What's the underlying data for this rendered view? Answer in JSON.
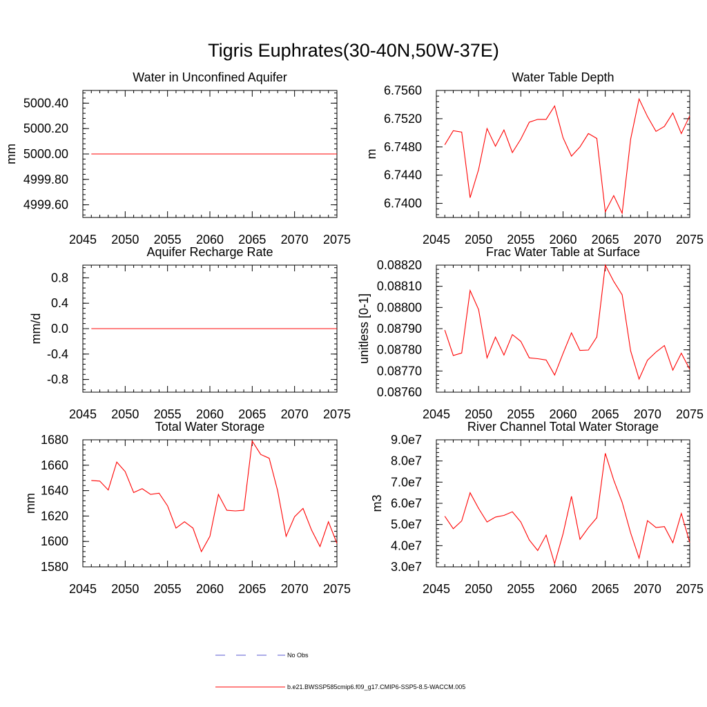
{
  "figure": {
    "title": "Tigris Euphrates(30-40N,50W-37E)"
  },
  "legend": {
    "items": [
      {
        "label": "No Obs",
        "color": "#5a5ad0",
        "style": "dashed"
      },
      {
        "label": "b.e21.BWSSP585cmip6.f09_g17.CMIP6-SSP5-8.5-WACCM.005",
        "color": "#ff0000",
        "style": "solid"
      }
    ]
  },
  "chart_data": [
    {
      "type": "line",
      "title": "Water in Unconfined Aquifer",
      "ylabel": "mm",
      "xlim": [
        2045,
        2075
      ],
      "ylim": [
        4999.5,
        5000.5
      ],
      "x_ticks": [
        "2045",
        "2050",
        "2055",
        "2060",
        "2065",
        "2070",
        "2075"
      ],
      "y_ticks": [
        {
          "value": 4999.6,
          "label": "4999.60"
        },
        {
          "value": 4999.8,
          "label": "4999.80"
        },
        {
          "value": 5000.0,
          "label": "5000.00"
        },
        {
          "value": 5000.2,
          "label": "5000.20"
        },
        {
          "value": 5000.4,
          "label": "5000.40"
        }
      ],
      "series": [
        {
          "color": "#ff0000",
          "x": [
            2046,
            2075
          ],
          "y": [
            5000.0,
            5000.0
          ]
        }
      ]
    },
    {
      "type": "line",
      "title": "Water Table Depth",
      "ylabel": "m",
      "xlim": [
        2045,
        2075
      ],
      "ylim": [
        6.738,
        6.756
      ],
      "x_ticks": [
        "2045",
        "2050",
        "2055",
        "2060",
        "2065",
        "2070",
        "2075"
      ],
      "y_ticks": [
        {
          "value": 6.74,
          "label": "6.7400"
        },
        {
          "value": 6.744,
          "label": "6.7440"
        },
        {
          "value": 6.748,
          "label": "6.7480"
        },
        {
          "value": 6.752,
          "label": "6.7520"
        },
        {
          "value": 6.756,
          "label": "6.7560"
        }
      ],
      "series": [
        {
          "color": "#ff0000",
          "x": [
            2046,
            2047,
            2048,
            2049,
            2050,
            2051,
            2052,
            2053,
            2054,
            2055,
            2056,
            2057,
            2058,
            2059,
            2060,
            2061,
            2062,
            2063,
            2064,
            2065,
            2066,
            2067,
            2068,
            2069,
            2070,
            2071,
            2072,
            2073,
            2074,
            2075
          ],
          "y": [
            6.7483,
            6.7503,
            6.7501,
            6.7408,
            6.7448,
            6.7506,
            6.7481,
            6.7504,
            6.7472,
            6.7491,
            6.7515,
            6.7519,
            6.7519,
            6.7538,
            6.7493,
            6.7467,
            6.748,
            6.7499,
            6.7492,
            6.7388,
            6.7411,
            6.7386,
            6.7491,
            6.7548,
            6.7523,
            6.7502,
            6.7509,
            6.7528,
            6.7499,
            6.7524
          ]
        }
      ]
    },
    {
      "type": "line",
      "title": "Aquifer Recharge Rate",
      "ylabel": "mm/d",
      "xlim": [
        2045,
        2075
      ],
      "ylim": [
        -1.0,
        1.0
      ],
      "x_ticks": [
        "2045",
        "2050",
        "2055",
        "2060",
        "2065",
        "2070",
        "2075"
      ],
      "y_ticks": [
        {
          "value": -0.8,
          "label": "-0.8"
        },
        {
          "value": -0.4,
          "label": "-0.4"
        },
        {
          "value": 0.0,
          "label": "0.0"
        },
        {
          "value": 0.4,
          "label": "0.4"
        },
        {
          "value": 0.8,
          "label": "0.8"
        }
      ],
      "series": [
        {
          "color": "#ff0000",
          "x": [
            2046,
            2075
          ],
          "y": [
            0.0,
            0.0
          ]
        }
      ]
    },
    {
      "type": "line",
      "title": "Frac Water Table at Surface",
      "ylabel": "unitless [0-1]",
      "xlim": [
        2045,
        2075
      ],
      "ylim": [
        0.0876,
        0.0882
      ],
      "x_ticks": [
        "2045",
        "2050",
        "2055",
        "2060",
        "2065",
        "2070",
        "2075"
      ],
      "y_ticks": [
        {
          "value": 0.0876,
          "label": "0.08760"
        },
        {
          "value": 0.0877,
          "label": "0.08770"
        },
        {
          "value": 0.0878,
          "label": "0.08780"
        },
        {
          "value": 0.0879,
          "label": "0.08790"
        },
        {
          "value": 0.088,
          "label": "0.08800"
        },
        {
          "value": 0.0881,
          "label": "0.08810"
        },
        {
          "value": 0.0882,
          "label": "0.08820"
        }
      ],
      "series": [
        {
          "color": "#ff0000",
          "x": [
            2046,
            2047,
            2048,
            2049,
            2050,
            2051,
            2052,
            2053,
            2054,
            2055,
            2056,
            2057,
            2058,
            2059,
            2060,
            2061,
            2062,
            2063,
            2064,
            2065,
            2066,
            2067,
            2068,
            2069,
            2070,
            2071,
            2072,
            2073,
            2074,
            2075
          ],
          "y": [
            0.087893,
            0.087773,
            0.087785,
            0.08808,
            0.08799,
            0.087762,
            0.08786,
            0.087775,
            0.087872,
            0.08784,
            0.087762,
            0.087758,
            0.087752,
            0.087681,
            0.087783,
            0.08788,
            0.087797,
            0.087799,
            0.087861,
            0.0882,
            0.088123,
            0.08806,
            0.087795,
            0.087662,
            0.087751,
            0.087789,
            0.08782,
            0.087704,
            0.087784,
            0.087708
          ]
        }
      ]
    },
    {
      "type": "line",
      "title": "Total Water Storage",
      "ylabel": "mm",
      "xlim": [
        2045,
        2075
      ],
      "ylim": [
        1580,
        1680
      ],
      "x_ticks": [
        "2045",
        "2050",
        "2055",
        "2060",
        "2065",
        "2070",
        "2075"
      ],
      "y_ticks": [
        {
          "value": 1580,
          "label": "1580"
        },
        {
          "value": 1600,
          "label": "1600"
        },
        {
          "value": 1620,
          "label": "1620"
        },
        {
          "value": 1640,
          "label": "1640"
        },
        {
          "value": 1660,
          "label": "1660"
        },
        {
          "value": 1680,
          "label": "1680"
        }
      ],
      "series": [
        {
          "color": "#ff0000",
          "x": [
            2046,
            2047,
            2048,
            2049,
            2050,
            2051,
            2052,
            2053,
            2054,
            2055,
            2056,
            2057,
            2058,
            2059,
            2060,
            2061,
            2062,
            2063,
            2064,
            2065,
            2066,
            2067,
            2068,
            2069,
            2070,
            2071,
            2072,
            2073,
            2074,
            2075
          ],
          "y": [
            1648,
            1647.5,
            1640.5,
            1662.5,
            1655,
            1638.5,
            1641.5,
            1637,
            1638,
            1628,
            1610.5,
            1615.5,
            1610.5,
            1592,
            1604,
            1637,
            1624.5,
            1624,
            1624.5,
            1679,
            1668.5,
            1665.5,
            1640,
            1604,
            1619.5,
            1626,
            1609,
            1596,
            1615.5,
            1598.5
          ]
        }
      ]
    },
    {
      "type": "line",
      "title": "River Channel Total Water Storage",
      "ylabel": "m3",
      "xlim": [
        2045,
        2075
      ],
      "ylim": [
        30000000,
        90000000
      ],
      "x_ticks": [
        "2045",
        "2050",
        "2055",
        "2060",
        "2065",
        "2070",
        "2075"
      ],
      "y_ticks": [
        {
          "value": 30000000,
          "label": "3.0e7"
        },
        {
          "value": 40000000,
          "label": "4.0e7"
        },
        {
          "value": 50000000,
          "label": "5.0e7"
        },
        {
          "value": 60000000,
          "label": "6.0e7"
        },
        {
          "value": 70000000,
          "label": "7.0e7"
        },
        {
          "value": 80000000,
          "label": "8.0e7"
        },
        {
          "value": 90000000,
          "label": "9.0e7"
        }
      ],
      "series": [
        {
          "color": "#ff0000",
          "x": [
            2046,
            2047,
            2048,
            2049,
            2050,
            2051,
            2052,
            2053,
            2054,
            2055,
            2056,
            2057,
            2058,
            2059,
            2060,
            2061,
            2062,
            2063,
            2064,
            2065,
            2066,
            2067,
            2068,
            2069,
            2070,
            2071,
            2072,
            2073,
            2074,
            2075
          ],
          "y": [
            53900000,
            48000000,
            51700000,
            65000000,
            57600000,
            51200000,
            53500000,
            54300000,
            56000000,
            51200000,
            42700000,
            37700000,
            45000000,
            31500000,
            45600000,
            63300000,
            43000000,
            48500000,
            53200000,
            83600000,
            71000000,
            60500000,
            46000000,
            34100000,
            51800000,
            48600000,
            49000000,
            41400000,
            55200000,
            41500000
          ]
        }
      ]
    }
  ]
}
